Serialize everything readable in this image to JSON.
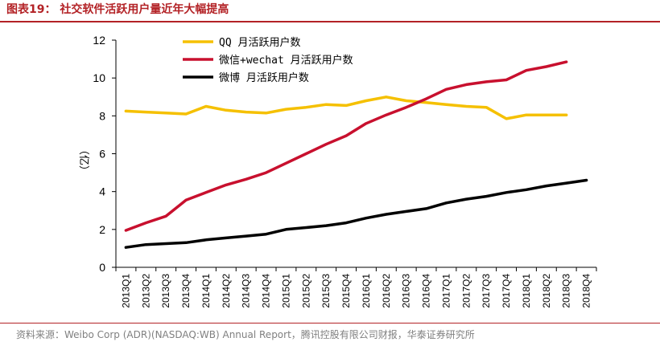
{
  "header": {
    "title": "图表19：  社交软件活跃用户量近年大幅提高"
  },
  "footer": {
    "source": "资料来源：Weibo Corp (ADR)(NASDAQ:WB) Annual Report，腾讯控股有限公司财报，华泰证券研究所"
  },
  "chart_data": {
    "type": "line",
    "title": "社交软件活跃用户量近年大幅提高",
    "ylabel": "（亿）",
    "xlabel": "",
    "ylim": [
      0,
      12
    ],
    "yticks": [
      0,
      2,
      4,
      6,
      8,
      10,
      12
    ],
    "grid": false,
    "legend_position": "top-center",
    "categories": [
      "2013Q1",
      "2013Q2",
      "2013Q3",
      "2013Q4",
      "2014Q1",
      "2014Q2",
      "2014Q3",
      "2014Q4",
      "2015Q1",
      "2015Q2",
      "2015Q3",
      "2015Q4",
      "2016Q1",
      "2016Q2",
      "2016Q3",
      "2016Q4",
      "2017Q1",
      "2017Q2",
      "2017Q3",
      "2017Q4",
      "2018Q1",
      "2018Q2",
      "2018Q3",
      "2018Q4"
    ],
    "series": [
      {
        "name": "QQ 月活跃用户数",
        "color": "#f5c000",
        "values": [
          8.25,
          8.2,
          8.15,
          8.1,
          8.5,
          8.3,
          8.2,
          8.15,
          8.35,
          8.45,
          8.6,
          8.55,
          8.8,
          9.0,
          8.8,
          8.7,
          8.6,
          8.5,
          8.45,
          7.85,
          8.05,
          8.05,
          8.05,
          null
        ]
      },
      {
        "name": "微信+wechat 月活跃用户数",
        "color": "#c8102e",
        "values": [
          1.95,
          2.35,
          2.7,
          3.55,
          3.95,
          4.35,
          4.65,
          5.0,
          5.5,
          6.0,
          6.5,
          6.95,
          7.6,
          8.05,
          8.45,
          8.9,
          9.4,
          9.65,
          9.8,
          9.9,
          10.4,
          10.6,
          10.85,
          null
        ]
      },
      {
        "name": "微博 月活跃用户数",
        "color": "#000000",
        "values": [
          1.05,
          1.2,
          1.25,
          1.3,
          1.45,
          1.55,
          1.65,
          1.75,
          2.0,
          2.1,
          2.2,
          2.35,
          2.6,
          2.8,
          2.95,
          3.1,
          3.4,
          3.6,
          3.75,
          3.95,
          4.1,
          4.3,
          4.45,
          4.6
        ]
      }
    ]
  }
}
